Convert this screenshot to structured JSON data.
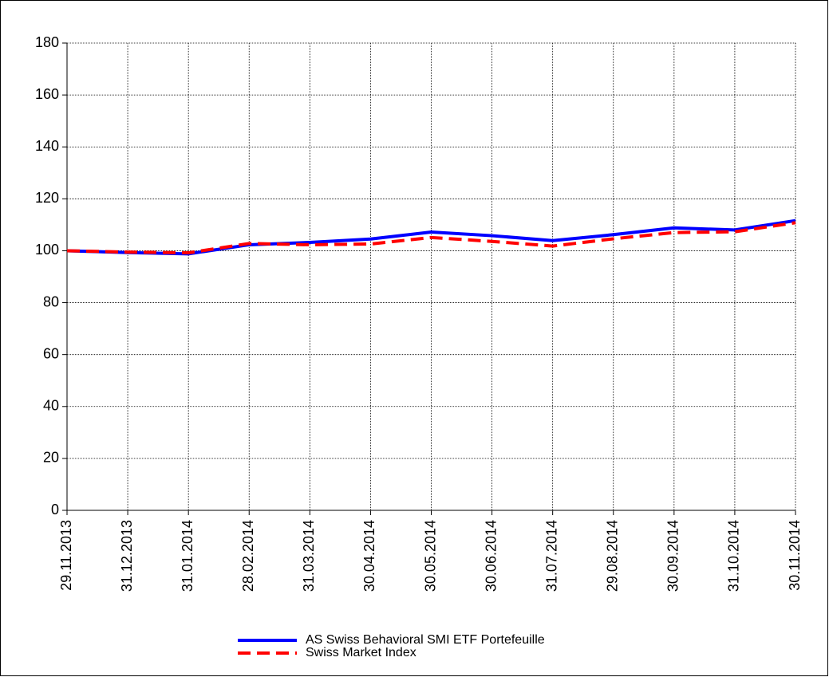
{
  "chart_data": {
    "type": "line",
    "categories": [
      "29.11.2013",
      "31.12.2013",
      "31.01.2014",
      "28.02.2014",
      "31.03.2014",
      "30.04.2014",
      "30.05.2014",
      "30.06.2014",
      "31.07.2014",
      "29.08.2014",
      "30.09.2014",
      "31.10.2014",
      "30.11.2014"
    ],
    "series": [
      {
        "name": "AS Swiss Behavioral SMI ETF Portefeuille",
        "color": "#0000ff",
        "line_style": "solid",
        "values": [
          100,
          99.3,
          98.8,
          102.3,
          103.2,
          104.5,
          107.2,
          105.8,
          103.9,
          106.2,
          108.8,
          108.0,
          111.6
        ]
      },
      {
        "name": "Swiss Market Index",
        "color": "#ff0000",
        "line_style": "dashed",
        "values": [
          100,
          99.5,
          99.2,
          102.8,
          102.3,
          102.6,
          105.1,
          103.6,
          101.8,
          104.6,
          107.0,
          107.3,
          110.8
        ]
      }
    ],
    "ylim": [
      0,
      180
    ],
    "yticks": [
      0,
      20,
      40,
      60,
      80,
      100,
      120,
      140,
      160,
      180
    ],
    "grid": true,
    "legend": "bottom"
  }
}
